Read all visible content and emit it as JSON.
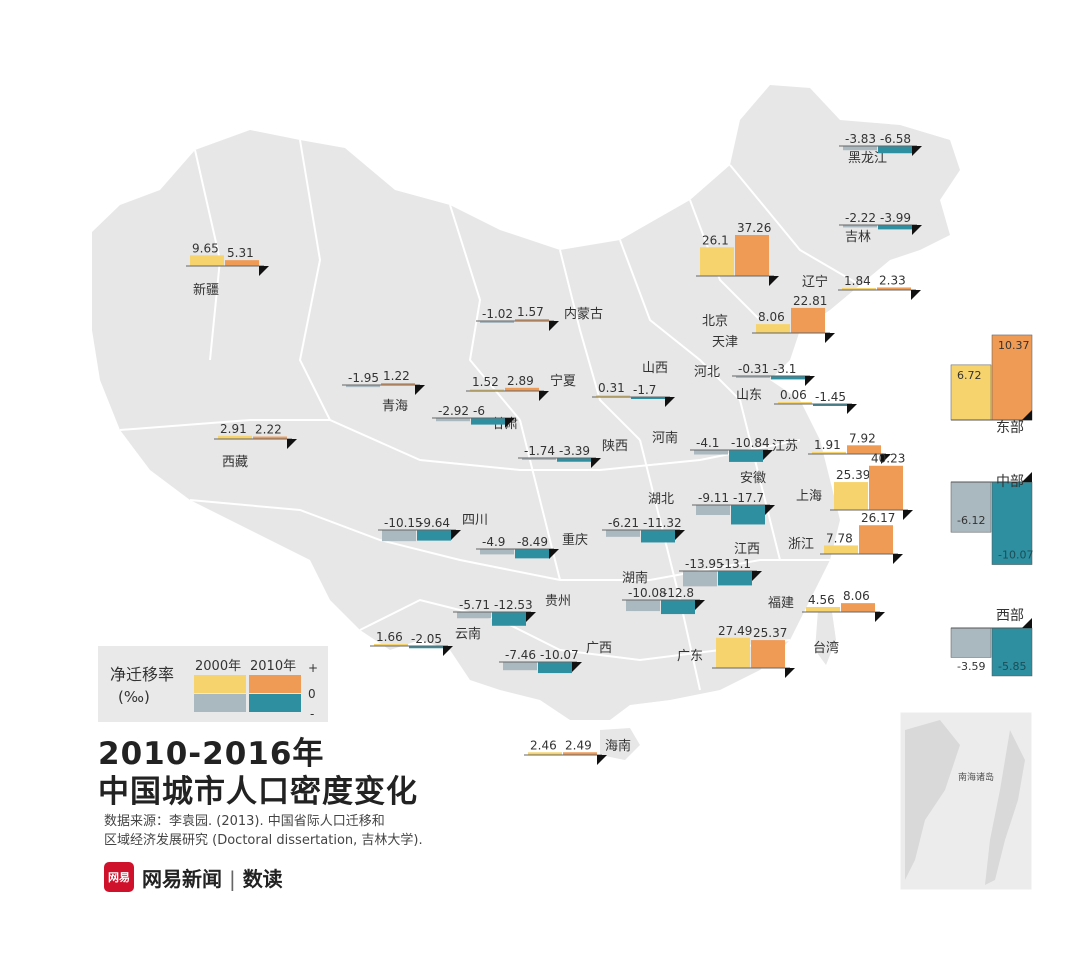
{
  "title_line1": "2010-2016年",
  "title_line2": "中国城市人口密度变化",
  "source_line1": "数据来源：李袁园. (2013). 中国省际人口迁移和",
  "source_line2": "区域经济发展研究 (Doctoral dissertation, 吉林大学).",
  "brand": {
    "logo": "网易",
    "text": "网易新闻",
    "sub": "数读"
  },
  "legend": {
    "label": "净迁移率",
    "unit": "(‰)",
    "col2000": "2000年",
    "col2010": "2010年",
    "plus": "+",
    "zero": "0",
    "minus": "-"
  },
  "colors": {
    "pos2000": "#f6d36c",
    "pos2010": "#ef9a55",
    "neg2000": "#aab8bf",
    "neg2010": "#2d8fa0",
    "map": "#e7e7e7",
    "border": "#ffffff"
  },
  "south_china_sea_label": "南海诸岛",
  "provinces": [
    {
      "name": "黑龙江",
      "v2000": -3.83,
      "v2010": -6.58,
      "l2000": "-3.83",
      "l2010": "-6.58"
    },
    {
      "name": "吉林",
      "v2000": -2.22,
      "v2010": -3.99,
      "l2000": "-2.22",
      "l2010": "-3.99"
    },
    {
      "name": "辽宁",
      "v2000": 1.84,
      "v2010": 2.33,
      "l2000": "1.84",
      "l2010": "2.33"
    },
    {
      "name": "新疆",
      "v2000": 9.65,
      "v2010": 5.31,
      "l2000": "9.65",
      "l2010": "5.31"
    },
    {
      "name": "北京",
      "v2000": 26.1,
      "v2010": 37.26,
      "l2000": "26.1",
      "l2010": "37.26"
    },
    {
      "name": "内蒙古",
      "v2000": -1.02,
      "v2010": 1.57,
      "l2000": "-1.02",
      "l2010": "1.57"
    },
    {
      "name": "天津",
      "v2000": 8.06,
      "v2010": 22.81,
      "l2000": "8.06",
      "l2010": "22.81"
    },
    {
      "name": "青海",
      "v2000": -1.95,
      "v2010": 1.22,
      "l2000": "-1.95",
      "l2010": "1.22"
    },
    {
      "name": "宁夏",
      "v2000": 1.52,
      "v2010": 2.89,
      "l2000": "1.52",
      "l2010": "2.89"
    },
    {
      "name": "山西",
      "v2000": 0.31,
      "v2010": -1.7,
      "l2000": "0.31",
      "l2010": "-1.7"
    },
    {
      "name": "河北",
      "v2000": -0.31,
      "v2010": -3.1,
      "l2000": "-0.31",
      "l2010": "-3.1"
    },
    {
      "name": "甘肃",
      "v2000": -2.92,
      "v2010": -6,
      "l2000": "-2.92",
      "l2010": "-6"
    },
    {
      "name": "山东",
      "v2000": 0.06,
      "v2010": -1.45,
      "l2000": "0.06",
      "l2010": "-1.45"
    },
    {
      "name": "西藏",
      "v2000": 2.91,
      "v2010": 2.22,
      "l2000": "2.91",
      "l2010": "2.22"
    },
    {
      "name": "陕西",
      "v2000": -1.74,
      "v2010": -3.39,
      "l2000": "-1.74",
      "l2010": "-3.39"
    },
    {
      "name": "河南",
      "v2000": -4.1,
      "v2010": -10.84,
      "l2000": "-4.1",
      "l2010": "-10.84"
    },
    {
      "name": "江苏",
      "v2000": 1.91,
      "v2010": 7.92,
      "l2000": "1.91",
      "l2010": "7.92"
    },
    {
      "name": "安徽",
      "v2000": -9.11,
      "v2010": -17.7,
      "l2000": "-9.11",
      "l2010": "-17.7"
    },
    {
      "name": "上海",
      "v2000": 25.39,
      "v2010": 40.23,
      "l2000": "25.39",
      "l2010": "40.23"
    },
    {
      "name": "湖北",
      "v2000": -6.21,
      "v2010": -11.32,
      "l2000": "-6.21",
      "l2010": "-11.32"
    },
    {
      "name": "四川",
      "v2000": -10.15,
      "v2010": -9.64,
      "l2000": "-10.15",
      "l2010": "-9.64"
    },
    {
      "name": "重庆",
      "v2000": -4.9,
      "v2010": -8.49,
      "l2000": "-4.9",
      "l2010": "-8.49"
    },
    {
      "name": "浙江",
      "v2000": 7.78,
      "v2010": 26.17,
      "l2000": "7.78",
      "l2010": "26.17"
    },
    {
      "name": "江西",
      "v2000": -13.95,
      "v2010": -13.1,
      "l2000": "-13.95",
      "l2010": "-13.1"
    },
    {
      "name": "湖南",
      "v2000": -10.08,
      "v2010": -12.8,
      "l2000": "-10.08",
      "l2010": "-12.8"
    },
    {
      "name": "贵州",
      "v2000": -5.71,
      "v2010": -12.53,
      "l2000": "-5.71",
      "l2010": "-12.53"
    },
    {
      "name": "福建",
      "v2000": 4.56,
      "v2010": 8.06,
      "l2000": "4.56",
      "l2010": "8.06"
    },
    {
      "name": "云南",
      "v2000": 1.66,
      "v2010": -2.05,
      "l2000": "1.66",
      "l2010": "-2.05"
    },
    {
      "name": "广西",
      "v2000": -7.46,
      "v2010": -10.07,
      "l2000": "-7.46",
      "l2010": "-10.07"
    },
    {
      "name": "广东",
      "v2000": 27.49,
      "v2010": 25.37,
      "l2000": "27.49",
      "l2010": "25.37"
    },
    {
      "name": "台湾"
    },
    {
      "name": "海南",
      "v2000": 2.46,
      "v2010": 2.49,
      "l2000": "2.46",
      "l2010": "2.49"
    }
  ],
  "regions": [
    {
      "name": "东部",
      "v2000": 6.72,
      "v2010": 10.37,
      "l2000": "6.72",
      "l2010": "10.37"
    },
    {
      "name": "中部",
      "v2000": -6.12,
      "v2010": -10.07,
      "l2000": "-6.12",
      "l2010": "-10.07"
    },
    {
      "name": "西部",
      "v2000": -3.59,
      "v2010": -5.85,
      "l2000": "-3.59",
      "l2010": "-5.85"
    }
  ]
}
